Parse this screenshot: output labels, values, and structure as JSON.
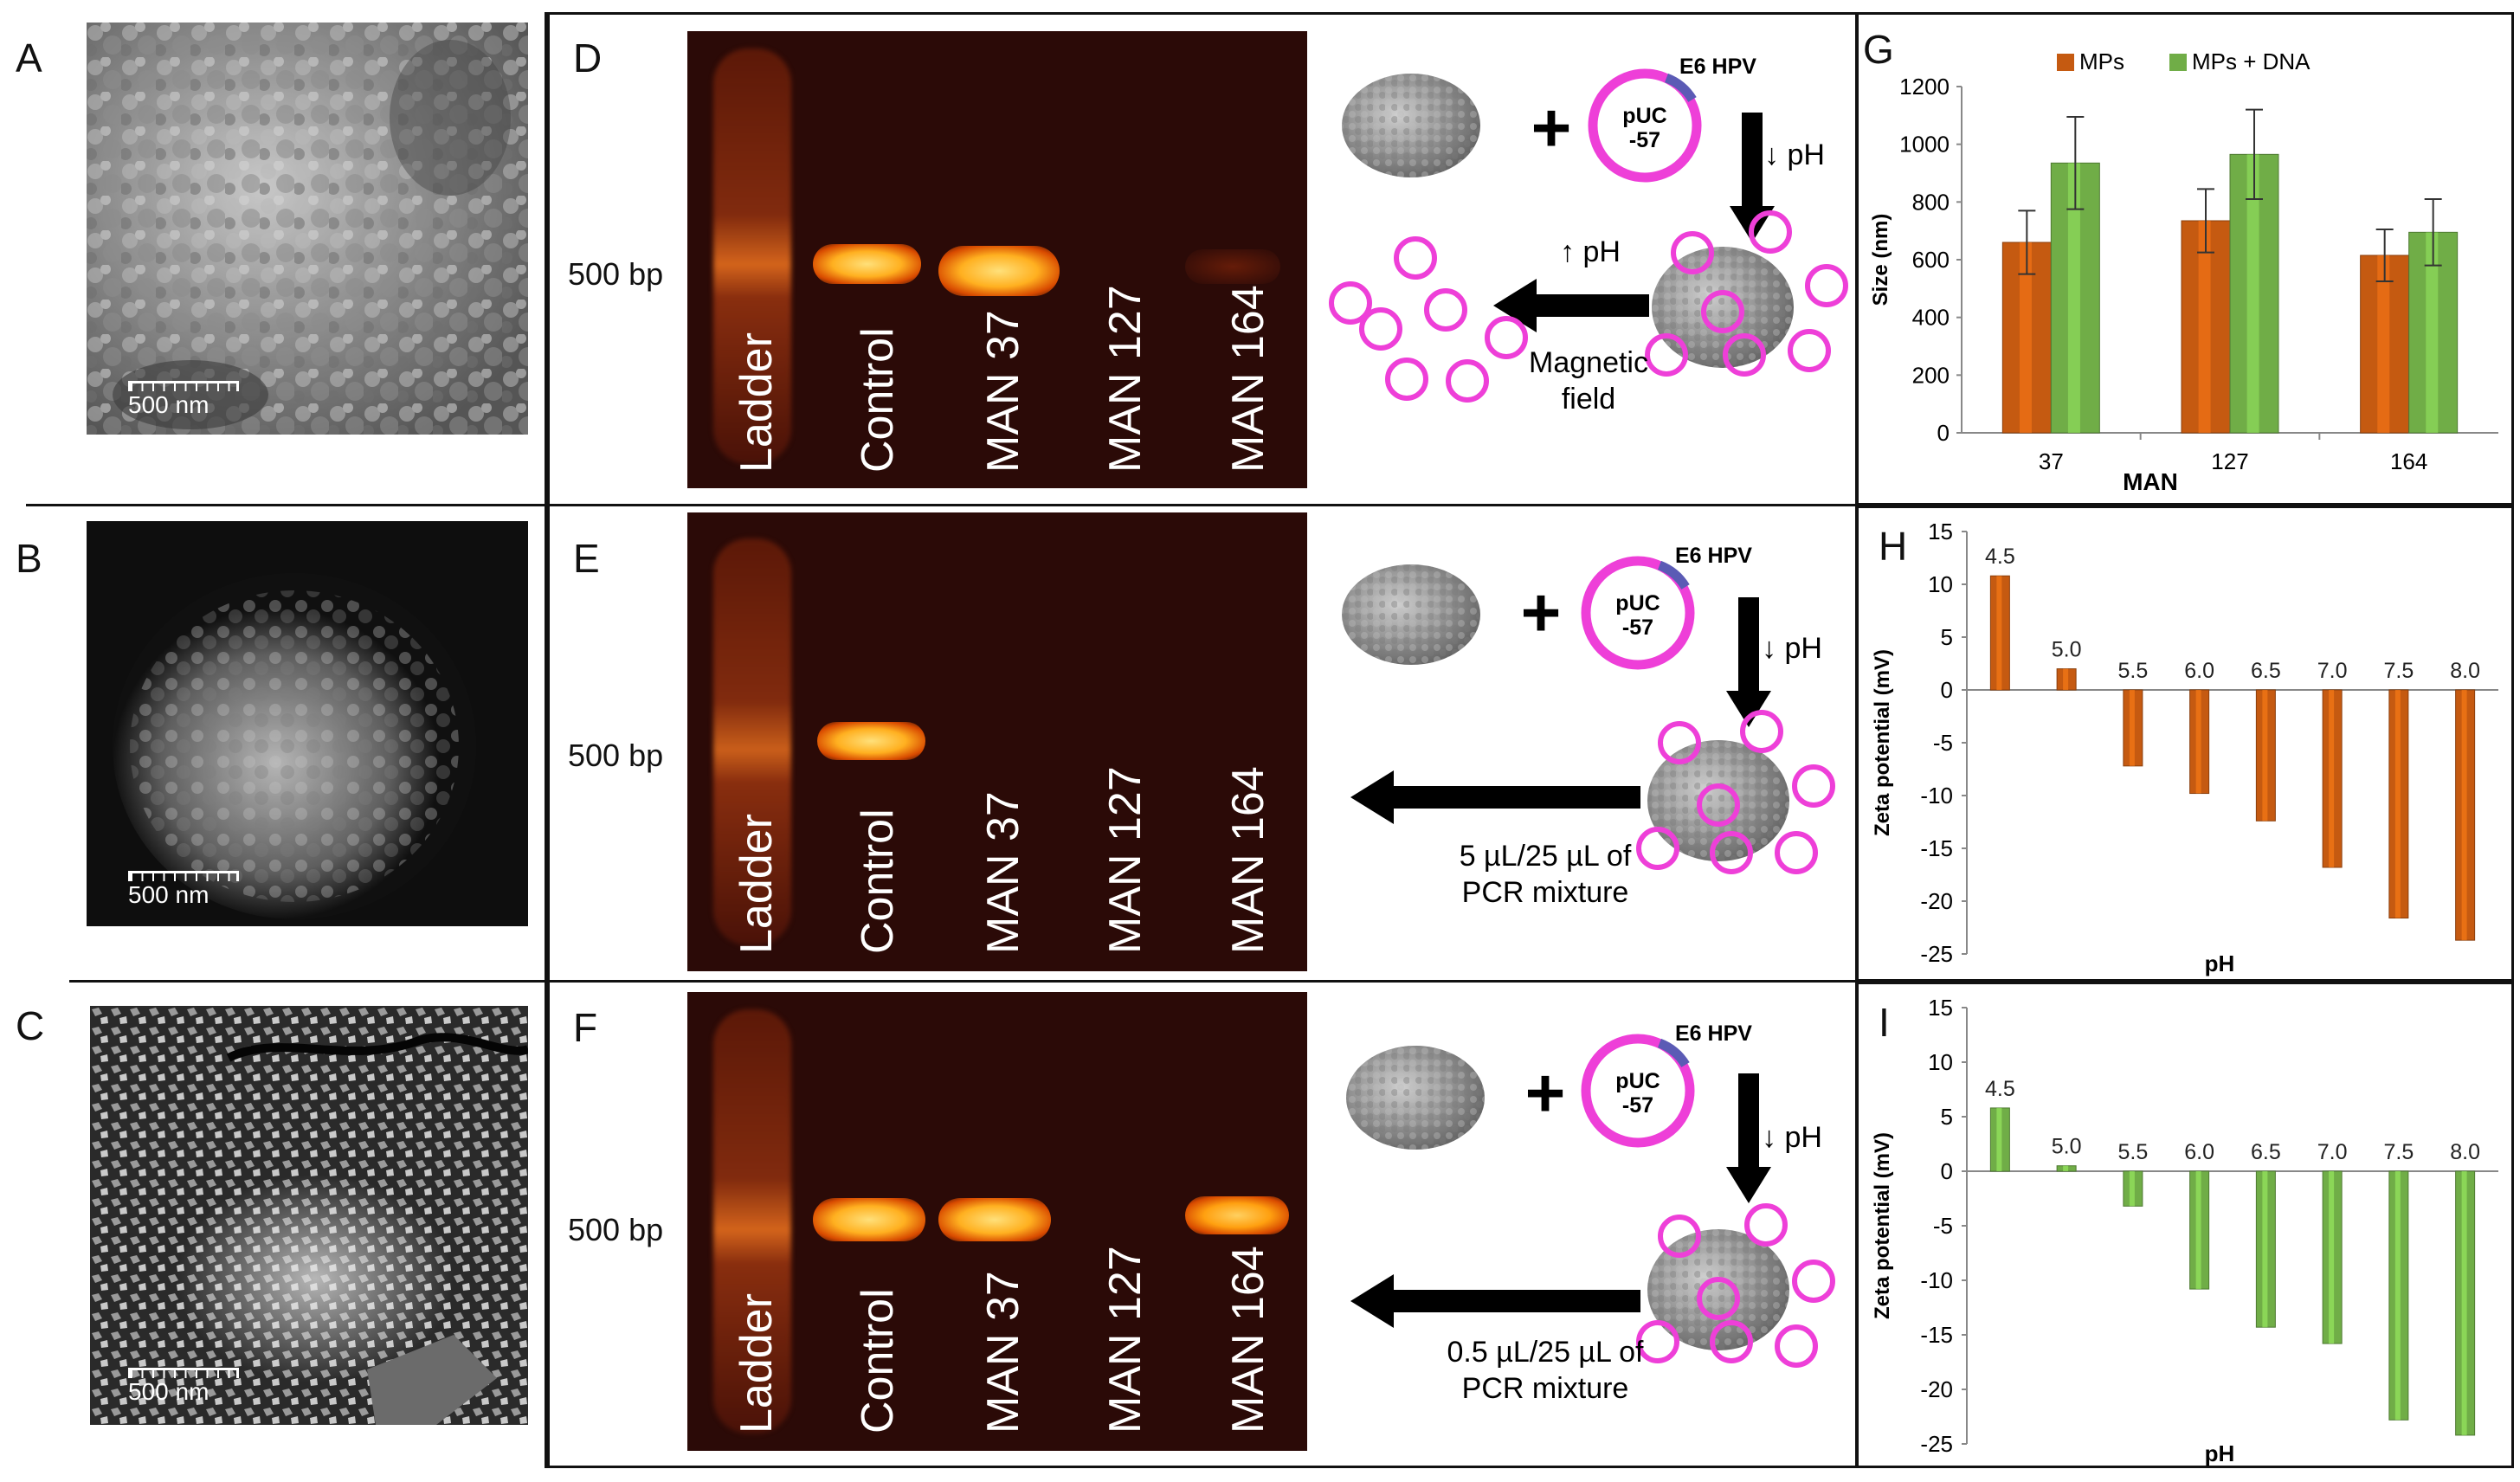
{
  "panels": {
    "A": {
      "letter": "A",
      "scale_label": "500 nm"
    },
    "B": {
      "letter": "B",
      "scale_label": "500 nm"
    },
    "C": {
      "letter": "C",
      "scale_label": "500 nm"
    },
    "D": {
      "letter": "D",
      "bp_label": "500 bp",
      "lanes": [
        "Ladder",
        "Control",
        "MAN 37",
        "MAN 127",
        "MAN 164"
      ],
      "plasmid_label": "pUC\n-57",
      "plasmid_top": "pUC",
      "plasmid_bottom": "-57",
      "insert_label": "E6 HPV",
      "down_ph": "↓ pH",
      "up_ph": "↑ pH",
      "release_line1": "Magnetic",
      "release_line2": "field",
      "bands": [
        0.0,
        1.0,
        1.0,
        0.0,
        0.05
      ]
    },
    "E": {
      "letter": "E",
      "bp_label": "500 bp",
      "lanes": [
        "Ladder",
        "Control",
        "MAN 37",
        "MAN 127",
        "MAN 164"
      ],
      "plasmid_top": "pUC",
      "plasmid_bottom": "-57",
      "insert_label": "E6 HPV",
      "down_ph": "↓ pH",
      "release_line1": "5 µL/25 µL of",
      "release_line2": "PCR mixture",
      "bands": [
        0.0,
        1.0,
        0.0,
        0.0,
        0.0
      ]
    },
    "F": {
      "letter": "F",
      "bp_label": "500 bp",
      "lanes": [
        "Ladder",
        "Control",
        "MAN 37",
        "MAN 127",
        "MAN 164"
      ],
      "plasmid_top": "pUC",
      "plasmid_bottom": "-57",
      "insert_label": "E6 HPV",
      "down_ph": "↓ pH",
      "release_line1": "0.5 µL/25 µL of",
      "release_line2": "PCR mixture",
      "bands": [
        0.0,
        1.0,
        1.0,
        0.0,
        0.8
      ]
    }
  },
  "chart_data": [
    {
      "panel": "G",
      "type": "bar",
      "categories": [
        "37",
        "127",
        "164"
      ],
      "xlabel": "MAN",
      "ylabel": "Size (nm)",
      "ylim": [
        0,
        1200
      ],
      "yticks": [
        0,
        200,
        400,
        600,
        800,
        1000,
        1200
      ],
      "legend": "top",
      "series": [
        {
          "name": "MPs",
          "values": [
            660,
            735,
            615
          ],
          "errors": [
            110,
            110,
            90
          ],
          "color": "#c55a11"
        },
        {
          "name": "MPs + DNA",
          "values": [
            935,
            965,
            695
          ],
          "errors": [
            160,
            155,
            115
          ],
          "color": "#70ad47"
        }
      ]
    },
    {
      "panel": "H",
      "type": "bar",
      "categories": [
        "4.5",
        "5.0",
        "5.5",
        "6.0",
        "6.5",
        "7.0",
        "7.5",
        "8.0"
      ],
      "values": [
        10.8,
        2.0,
        -7.2,
        -9.8,
        -12.4,
        -16.8,
        -21.6,
        -23.7
      ],
      "xlabel": "pH",
      "ylabel": "Zeta potential (mV)",
      "ylim": [
        -25,
        15
      ],
      "yticks": [
        -25,
        -20,
        -15,
        -10,
        -5,
        0,
        5,
        10,
        15
      ],
      "color": "#c55a11"
    },
    {
      "panel": "I",
      "type": "bar",
      "categories": [
        "4.5",
        "5.0",
        "5.5",
        "6.0",
        "6.5",
        "7.0",
        "7.5",
        "8.0"
      ],
      "values": [
        5.8,
        0.5,
        -3.2,
        -10.8,
        -14.3,
        -15.8,
        -22.8,
        -24.2
      ],
      "xlabel": "pH",
      "ylabel": "Zeta potential (mV)",
      "ylim": [
        -25,
        15
      ],
      "yticks": [
        -25,
        -20,
        -15,
        -10,
        -5,
        0,
        5,
        10,
        15
      ],
      "color": "#70ad47"
    }
  ]
}
